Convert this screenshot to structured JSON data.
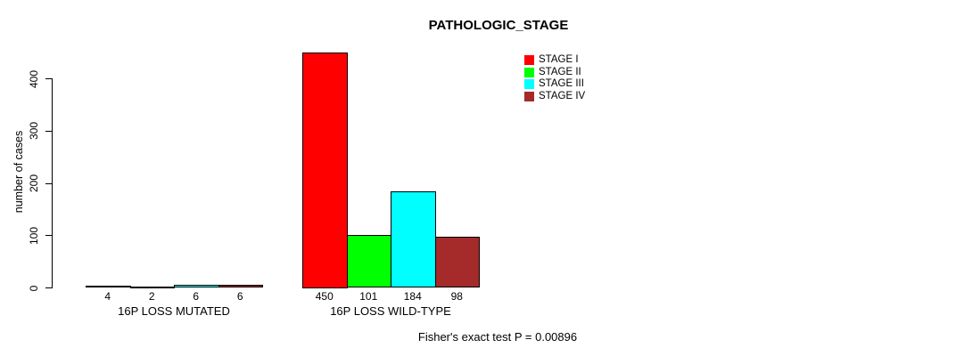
{
  "chart_data": {
    "type": "bar",
    "title": "PATHOLOGIC_STAGE",
    "ylabel": "number of cases",
    "ylim": [
      0,
      450
    ],
    "yticks": [
      0,
      100,
      200,
      300,
      400
    ],
    "grid": false,
    "legend_position": "top-right",
    "categories": [
      "16P LOSS MUTATED",
      "16P LOSS WILD-TYPE"
    ],
    "series": [
      {
        "name": "STAGE I",
        "color": "#FF0000",
        "values": [
          4,
          450
        ]
      },
      {
        "name": "STAGE II",
        "color": "#00FF00",
        "values": [
          2,
          101
        ]
      },
      {
        "name": "STAGE III",
        "color": "#00FFFF",
        "values": [
          6,
          184
        ]
      },
      {
        "name": "STAGE IV",
        "color": "#A52A2A",
        "values": [
          6,
          98
        ]
      }
    ],
    "bar_value_labels": [
      [
        "4",
        "2",
        "6",
        "6"
      ],
      [
        "450",
        "101",
        "184",
        "98"
      ]
    ],
    "annotation": "Fisher's exact test P = 0.00896"
  }
}
